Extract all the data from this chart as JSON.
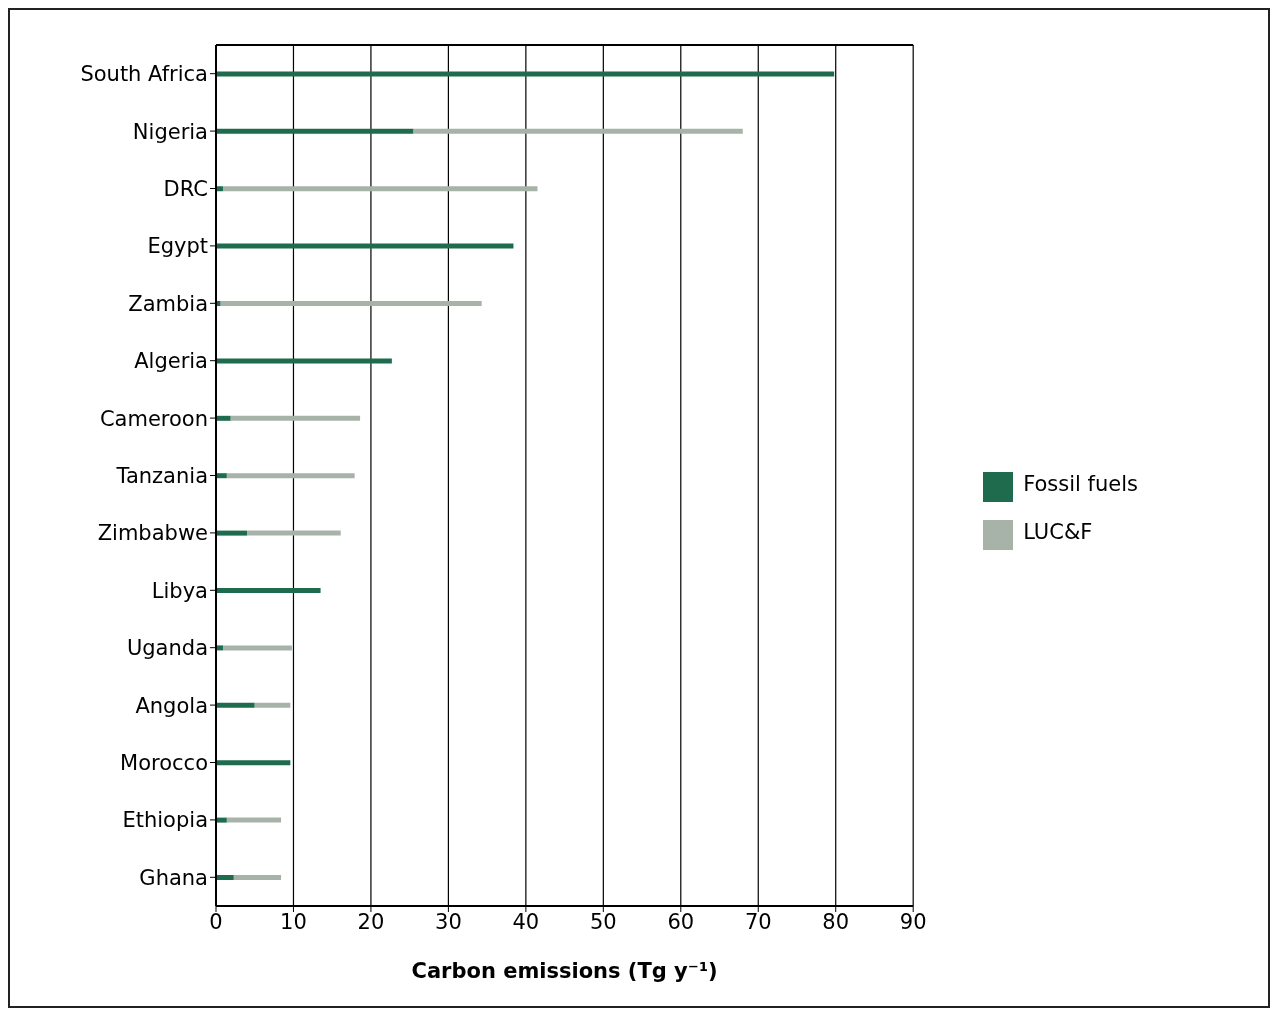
{
  "chart_data": {
    "type": "bar",
    "orientation": "horizontal",
    "stacked": true,
    "xlabel": "Carbon emissions (Tg y⁻¹)",
    "categories": [
      "South Africa",
      "Nigeria",
      "DRC",
      "Egypt",
      "Zambia",
      "Algeria",
      "Cameroon",
      "Tanzania",
      "Zimbabwe",
      "Libya",
      "Uganda",
      "Angola",
      "Morocco",
      "Ethiopia",
      "Ghana"
    ],
    "series": [
      {
        "name": "Fossil fuels",
        "color": "#1e6b4e",
        "values": [
          79.8,
          25.5,
          0.9,
          38.4,
          0.6,
          22.7,
          1.9,
          1.4,
          4.0,
          13.5,
          0.9,
          5.0,
          9.6,
          1.4,
          2.3
        ]
      },
      {
        "name": "LUC&F",
        "color": "#a7b3a8",
        "values": [
          0,
          42.5,
          40.6,
          0,
          33.7,
          0,
          16.7,
          16.5,
          12.1,
          0,
          8.9,
          4.6,
          0,
          7.0,
          6.1
        ]
      }
    ],
    "xlim": [
      0,
      90
    ],
    "xticks": [
      0,
      10,
      20,
      30,
      40,
      50,
      60,
      70,
      80,
      90
    ],
    "grid": "x",
    "legend": "right"
  }
}
